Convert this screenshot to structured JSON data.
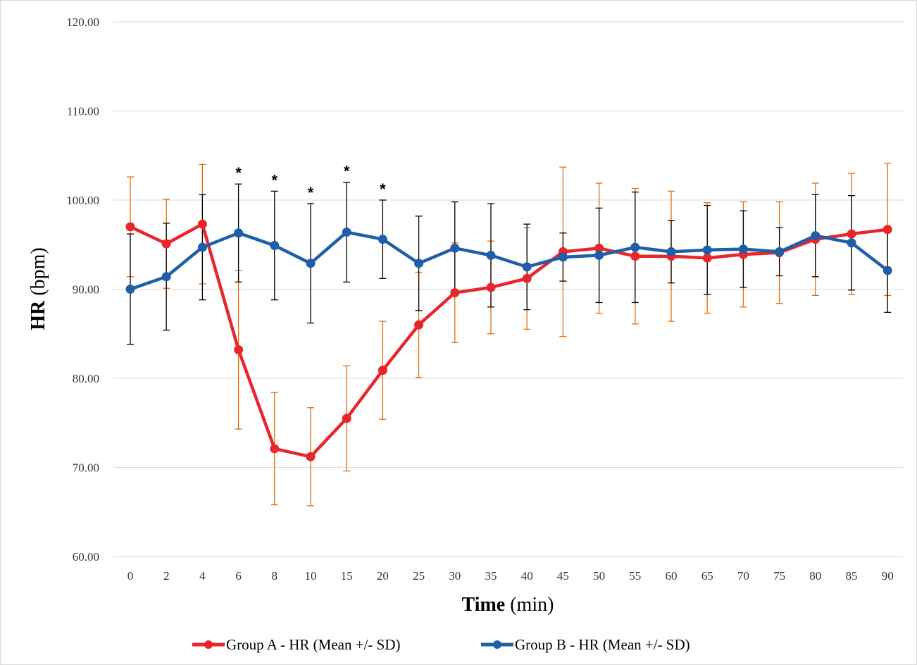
{
  "chart_data": {
    "type": "line",
    "categories": [
      "0",
      "2",
      "4",
      "6",
      "8",
      "10",
      "15",
      "20",
      "25",
      "30",
      "35",
      "40",
      "45",
      "50",
      "55",
      "60",
      "65",
      "70",
      "75",
      "80",
      "85",
      "90"
    ],
    "xlabel_bold": "Time",
    "xlabel_rest": " (min)",
    "ylabel_bold": "HR",
    "ylabel_rest": " (bpm)",
    "ylim": [
      60,
      120
    ],
    "yticks": [
      "60.00",
      "70.00",
      "80.00",
      "90.00",
      "100.00",
      "110.00",
      "120.00"
    ],
    "grid": true,
    "legend_position": "bottom",
    "significance_marker": "*",
    "significant_categories": [
      "6",
      "8",
      "10",
      "15",
      "20"
    ],
    "series": [
      {
        "name": "Group A - HR (Mean +/- SD)",
        "color": "#e8262b",
        "error_color": "#e46c0a",
        "values": [
          97.0,
          95.1,
          97.3,
          83.2,
          72.1,
          71.2,
          75.5,
          80.9,
          86.0,
          89.6,
          90.2,
          91.2,
          94.2,
          94.6,
          93.7,
          93.7,
          93.5,
          93.9,
          94.1,
          95.6,
          96.2,
          96.7
        ],
        "sd": [
          5.6,
          5.0,
          6.7,
          8.9,
          6.3,
          5.5,
          5.9,
          5.5,
          5.9,
          5.6,
          5.2,
          5.7,
          9.5,
          7.3,
          7.6,
          7.3,
          6.2,
          5.9,
          5.7,
          6.3,
          6.8,
          7.4
        ]
      },
      {
        "name": "Group B - HR (Mean +/- SD)",
        "color": "#1f5fa8",
        "error_color": "#000000",
        "values": [
          90.0,
          91.4,
          94.7,
          96.3,
          94.9,
          92.9,
          96.4,
          95.6,
          92.9,
          94.6,
          93.8,
          92.5,
          93.6,
          93.8,
          94.7,
          94.2,
          94.4,
          94.5,
          94.2,
          96.0,
          95.2,
          92.1
        ],
        "sd": [
          6.2,
          6.0,
          5.9,
          5.5,
          6.1,
          6.7,
          5.6,
          4.4,
          5.3,
          5.2,
          5.8,
          4.8,
          2.7,
          5.3,
          6.2,
          3.5,
          5.0,
          4.3,
          2.7,
          4.6,
          5.3,
          4.7
        ]
      }
    ]
  }
}
